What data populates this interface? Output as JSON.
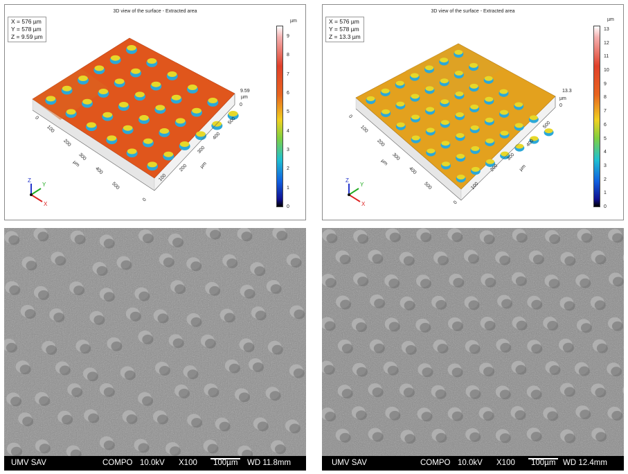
{
  "panels_3d": [
    {
      "title": "3D view of the surface - Extracted area",
      "readout": {
        "x": "X = 576 µm",
        "y": "Y = 578 µm",
        "z": "Z = 9.59 µm"
      },
      "unit": "µm",
      "height_label": "9.59",
      "height_unit": "µm",
      "colorbar_ticks": [
        "9",
        "8",
        "7",
        "6",
        "5",
        "4",
        "3",
        "2",
        "1",
        "0"
      ],
      "surface_color": "#e0561c",
      "axis_x_ticks": [
        "0",
        "100",
        "200",
        "300",
        "400",
        "500"
      ],
      "axis_y_ticks": [
        "0",
        "100",
        "200",
        "300",
        "400",
        "500"
      ],
      "axis_unit": "µm",
      "zero_label": "0",
      "triad": {
        "z": "Z",
        "y": "Y",
        "x": "X"
      }
    },
    {
      "title": "3D view of the surface - Extracted area",
      "readout": {
        "x": "X = 576 µm",
        "y": "Y = 578 µm",
        "z": "Z = 13.3 µm"
      },
      "unit": "µm",
      "height_label": "13.3",
      "height_unit": "µm",
      "colorbar_ticks": [
        "13",
        "12",
        "11",
        "10",
        "9",
        "8",
        "7",
        "6",
        "5",
        "4",
        "3",
        "2",
        "1",
        "0"
      ],
      "surface_color": "#e3a11e",
      "axis_x_ticks": [
        "0",
        "100",
        "200",
        "300",
        "400",
        "500"
      ],
      "axis_y_ticks": [
        "0",
        "100",
        "200",
        "300",
        "400",
        "500"
      ],
      "axis_unit": "µm",
      "zero_label": "0",
      "triad": {
        "z": "Z",
        "y": "Y",
        "x": "X"
      }
    }
  ],
  "sem_images": [
    {
      "institution": "UMV SAV",
      "mode": "COMPO",
      "voltage": "10.0kV",
      "magnification": "X100",
      "scale": "100µm",
      "wd": "WD 11.8mm"
    },
    {
      "institution": "UMV SAV",
      "mode": "COMPO",
      "voltage": "10.0kV",
      "magnification": "X100",
      "scale": "100µm",
      "wd": "WD 12.4mm"
    }
  ]
}
